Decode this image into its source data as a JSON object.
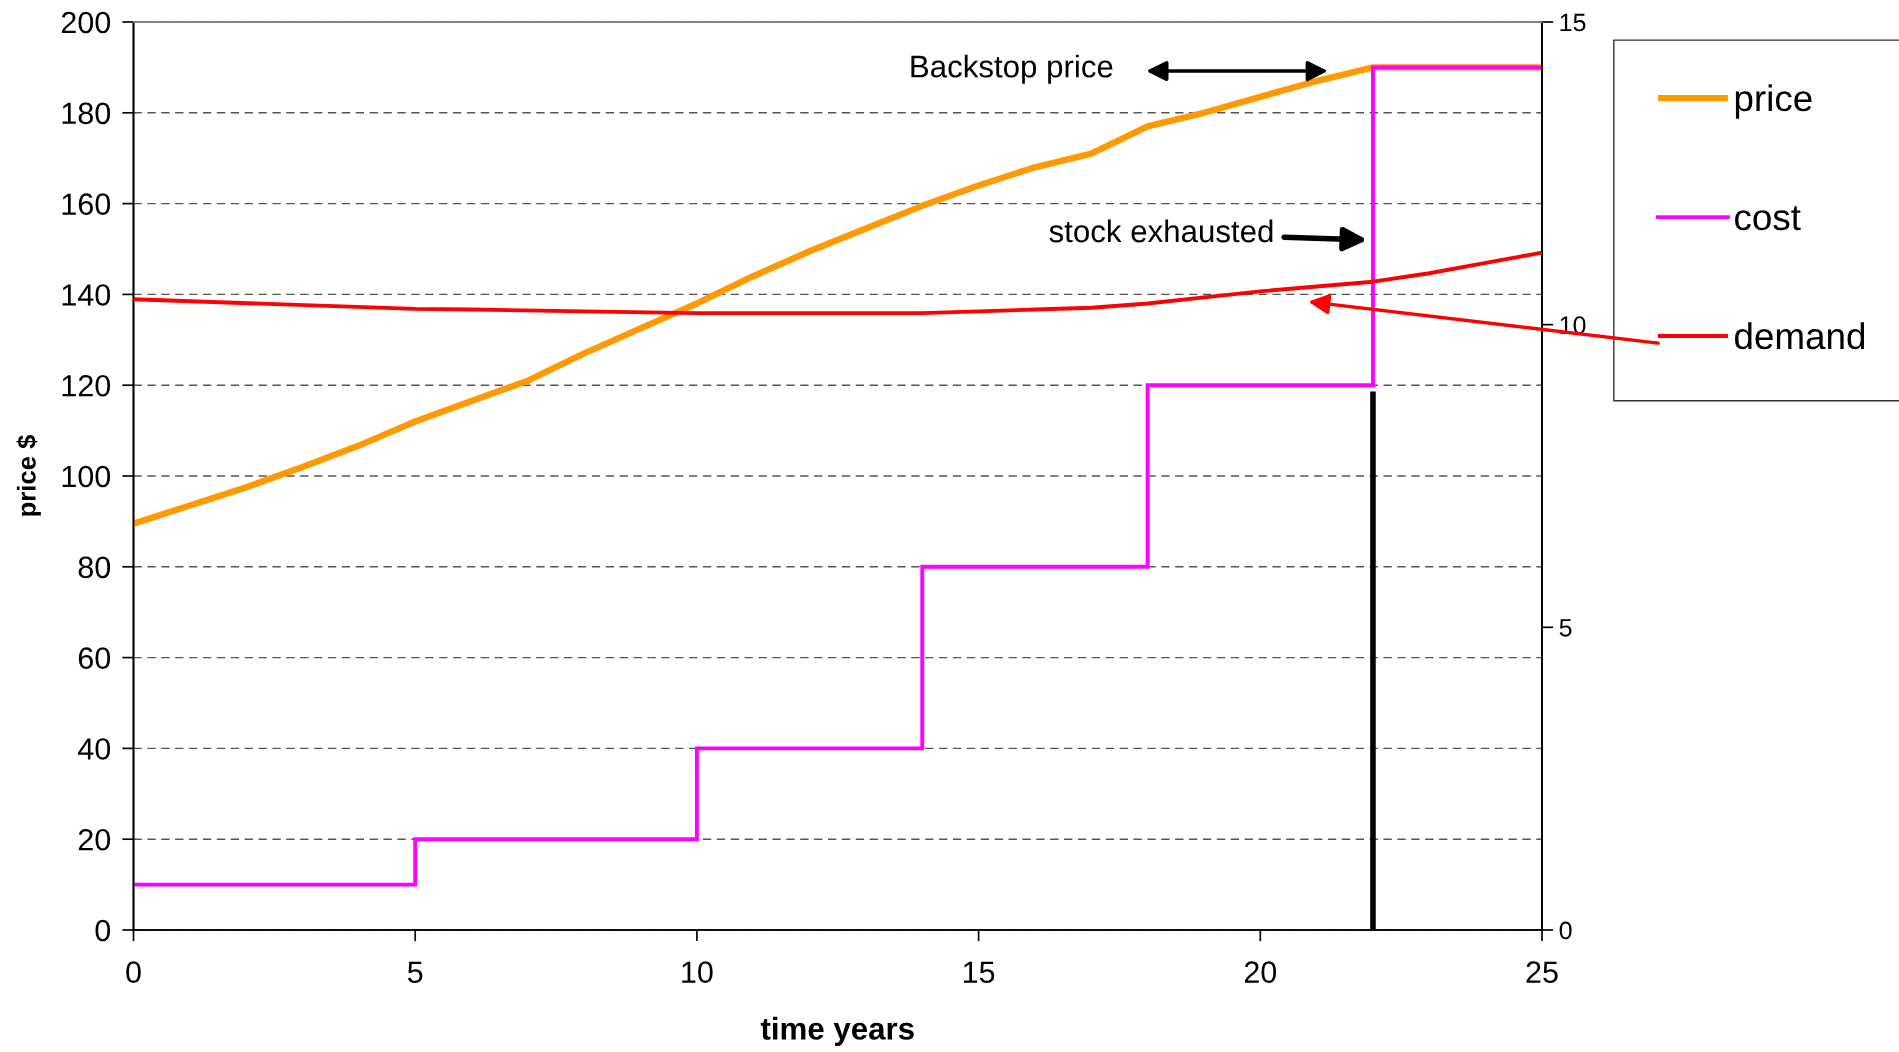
{
  "chart_data": {
    "type": "line",
    "xlabel": "time years",
    "ylabel": "price $",
    "xlim": [
      0,
      25
    ],
    "xticks": [
      0,
      5,
      10,
      15,
      20,
      25
    ],
    "ylim": [
      0,
      200
    ],
    "yticks": [
      0,
      20,
      40,
      60,
      80,
      100,
      120,
      140,
      160,
      180,
      200
    ],
    "y2lim": [
      0,
      15
    ],
    "y2ticks": [
      0,
      5,
      10,
      15
    ],
    "grid": "y",
    "legend": "right",
    "series": [
      {
        "name": "price",
        "color": "#ff9900",
        "x": [
          0,
          1,
          2,
          3,
          4,
          5,
          6,
          7,
          8,
          9,
          10,
          11,
          12,
          13,
          14,
          15,
          16,
          17,
          18,
          19,
          20,
          21,
          22,
          23,
          24,
          25
        ],
        "values": [
          89.5,
          93.5,
          97.5,
          102,
          106.7,
          112,
          116.5,
          121,
          127,
          132.5,
          138,
          144,
          149.5,
          154.5,
          159.5,
          164,
          168,
          171,
          177,
          180,
          183.5,
          187,
          190,
          190,
          190,
          190
        ]
      },
      {
        "name": "cost",
        "type": "step",
        "color": "#ff00ff",
        "x": [
          0,
          5,
          10,
          14,
          18,
          22,
          25
        ],
        "values": [
          10,
          20,
          40,
          80,
          120,
          190,
          190
        ]
      },
      {
        "name": "demand",
        "color": "#ff0000",
        "axis": "y2",
        "x": [
          0,
          5,
          6,
          8,
          10,
          12,
          14,
          16,
          17,
          18,
          19,
          20,
          21,
          22,
          23,
          24,
          25
        ],
        "values": [
          10.42,
          10.26,
          10.25,
          10.22,
          10.19,
          10.19,
          10.19,
          10.25,
          10.28,
          10.35,
          10.45,
          10.55,
          10.63,
          10.71,
          10.85,
          11.02,
          11.19
        ]
      }
    ],
    "ref_lines": [
      {
        "axis": "x",
        "value": 22,
        "color": "#000000"
      }
    ],
    "annotations": [
      "Backstop price",
      "stock exhausted"
    ]
  }
}
